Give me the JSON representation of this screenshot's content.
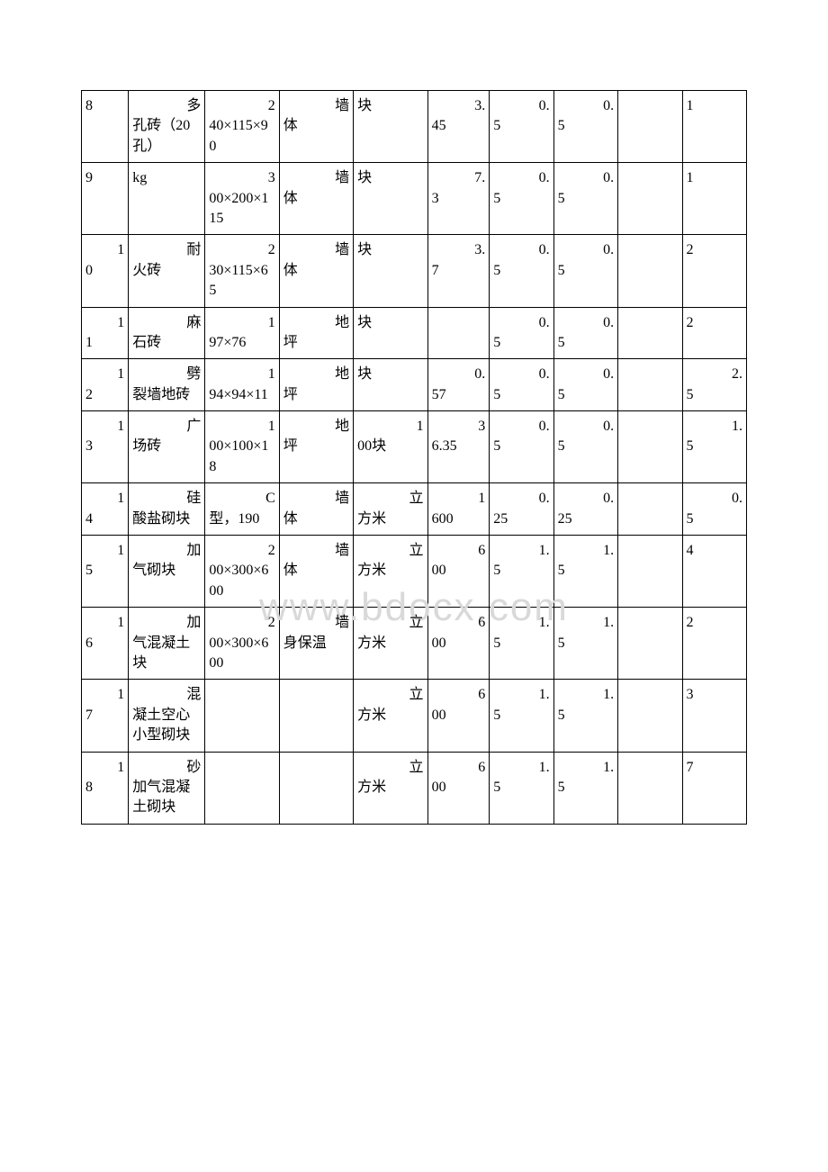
{
  "watermark_text": "www.bdocx.com",
  "rows": [
    {
      "c0": {
        "tr": "",
        "bl": "8"
      },
      "c1": {
        "tr": "多",
        "bl": "孔砖（20孔）"
      },
      "c2": {
        "tr": "2",
        "bl": "40×115×90"
      },
      "c3": {
        "tr": "墙",
        "bl": "体"
      },
      "c4": {
        "tr": "",
        "bl": "块"
      },
      "c5": {
        "tr": "3.",
        "bl": "45"
      },
      "c6": {
        "tr": "0.",
        "bl": "5"
      },
      "c7": {
        "tr": "0.",
        "bl": "5"
      },
      "c8": {
        "tr": "",
        "bl": ""
      },
      "c9": {
        "tr": "",
        "bl": "1"
      }
    },
    {
      "c0": {
        "tr": "",
        "bl": "9"
      },
      "c1": {
        "tr": "",
        "bl": "kg"
      },
      "c2": {
        "tr": "3",
        "bl": "00×200×115"
      },
      "c3": {
        "tr": "墙",
        "bl": "体"
      },
      "c4": {
        "tr": "",
        "bl": "块"
      },
      "c5": {
        "tr": "7.",
        "bl": "3"
      },
      "c6": {
        "tr": "0.",
        "bl": "5"
      },
      "c7": {
        "tr": "0.",
        "bl": "5"
      },
      "c8": {
        "tr": "",
        "bl": ""
      },
      "c9": {
        "tr": "",
        "bl": "1"
      }
    },
    {
      "c0": {
        "tr": "1",
        "bl": "0"
      },
      "c1": {
        "tr": "耐",
        "bl": "火砖"
      },
      "c2": {
        "tr": "2",
        "bl": "30×115×65"
      },
      "c3": {
        "tr": "墙",
        "bl": "体"
      },
      "c4": {
        "tr": "",
        "bl": "块"
      },
      "c5": {
        "tr": "3.",
        "bl": "7"
      },
      "c6": {
        "tr": "0.",
        "bl": "5"
      },
      "c7": {
        "tr": "0.",
        "bl": "5"
      },
      "c8": {
        "tr": "",
        "bl": ""
      },
      "c9": {
        "tr": "",
        "bl": "2"
      }
    },
    {
      "c0": {
        "tr": "1",
        "bl": "1"
      },
      "c1": {
        "tr": "麻",
        "bl": "石砖"
      },
      "c2": {
        "tr": "1",
        "bl": "97×76"
      },
      "c3": {
        "tr": "地",
        "bl": "坪"
      },
      "c4": {
        "tr": "",
        "bl": "块"
      },
      "c5": {
        "tr": "",
        "bl": ""
      },
      "c6": {
        "tr": "0.",
        "bl": "5"
      },
      "c7": {
        "tr": "0.",
        "bl": "5"
      },
      "c8": {
        "tr": "",
        "bl": ""
      },
      "c9": {
        "tr": "",
        "bl": "2"
      }
    },
    {
      "c0": {
        "tr": "1",
        "bl": "2"
      },
      "c1": {
        "tr": "劈",
        "bl": "裂墙地砖"
      },
      "c2": {
        "tr": "1",
        "bl": "94×94×11"
      },
      "c3": {
        "tr": "地",
        "bl": "坪"
      },
      "c4": {
        "tr": "",
        "bl": "块"
      },
      "c5": {
        "tr": "0.",
        "bl": "57"
      },
      "c6": {
        "tr": "0.",
        "bl": "5"
      },
      "c7": {
        "tr": "0.",
        "bl": "5"
      },
      "c8": {
        "tr": "",
        "bl": ""
      },
      "c9": {
        "tr": "2.",
        "bl": "5"
      }
    },
    {
      "c0": {
        "tr": "1",
        "bl": "3"
      },
      "c1": {
        "tr": "广",
        "bl": "场砖"
      },
      "c2": {
        "tr": "1",
        "bl": "00×100×18"
      },
      "c3": {
        "tr": "地",
        "bl": "坪"
      },
      "c4": {
        "tr": "1",
        "bl": "00块"
      },
      "c5": {
        "tr": "3",
        "bl": "6.35"
      },
      "c6": {
        "tr": "0.",
        "bl": "5"
      },
      "c7": {
        "tr": "0.",
        "bl": "5"
      },
      "c8": {
        "tr": "",
        "bl": ""
      },
      "c9": {
        "tr": "1.",
        "bl": "5"
      }
    },
    {
      "c0": {
        "tr": "1",
        "bl": "4"
      },
      "c1": {
        "tr": "硅",
        "bl": "酸盐砌块"
      },
      "c2": {
        "tr": "C",
        "bl": "型，190"
      },
      "c3": {
        "tr": "墙",
        "bl": "体"
      },
      "c4": {
        "tr": "立",
        "bl": "方米"
      },
      "c5": {
        "tr": "1",
        "bl": "600"
      },
      "c6": {
        "tr": "0.",
        "bl": "25"
      },
      "c7": {
        "tr": "0.",
        "bl": "25"
      },
      "c8": {
        "tr": "",
        "bl": ""
      },
      "c9": {
        "tr": "0.",
        "bl": "5"
      }
    },
    {
      "c0": {
        "tr": "1",
        "bl": "5"
      },
      "c1": {
        "tr": "加",
        "bl": "气砌块"
      },
      "c2": {
        "tr": "2",
        "bl": "00×300×600"
      },
      "c3": {
        "tr": "墙",
        "bl": "体"
      },
      "c4": {
        "tr": "立",
        "bl": "方米"
      },
      "c5": {
        "tr": "6",
        "bl": "00"
      },
      "c6": {
        "tr": "1.",
        "bl": "5"
      },
      "c7": {
        "tr": "1.",
        "bl": "5"
      },
      "c8": {
        "tr": "",
        "bl": ""
      },
      "c9": {
        "tr": "",
        "bl": "4"
      }
    },
    {
      "c0": {
        "tr": "1",
        "bl": "6"
      },
      "c1": {
        "tr": "加",
        "bl": "气混凝土块"
      },
      "c2": {
        "tr": "2",
        "bl": "00×300×600"
      },
      "c3": {
        "tr": "墙",
        "bl": "身保温"
      },
      "c4": {
        "tr": "立",
        "bl": "方米"
      },
      "c5": {
        "tr": "6",
        "bl": "00"
      },
      "c6": {
        "tr": "1.",
        "bl": "5"
      },
      "c7": {
        "tr": "1.",
        "bl": "5"
      },
      "c8": {
        "tr": "",
        "bl": ""
      },
      "c9": {
        "tr": "",
        "bl": "2"
      }
    },
    {
      "c0": {
        "tr": "1",
        "bl": "7"
      },
      "c1": {
        "tr": "混",
        "bl": "凝土空心小型砌块"
      },
      "c2": {
        "tr": "",
        "bl": ""
      },
      "c3": {
        "tr": "",
        "bl": ""
      },
      "c4": {
        "tr": "立",
        "bl": "方米"
      },
      "c5": {
        "tr": "6",
        "bl": "00"
      },
      "c6": {
        "tr": "1.",
        "bl": "5"
      },
      "c7": {
        "tr": "1.",
        "bl": "5"
      },
      "c8": {
        "tr": "",
        "bl": ""
      },
      "c9": {
        "tr": "",
        "bl": "3"
      }
    },
    {
      "c0": {
        "tr": "1",
        "bl": "8"
      },
      "c1": {
        "tr": "砂",
        "bl": "加气混凝土砌块"
      },
      "c2": {
        "tr": "",
        "bl": ""
      },
      "c3": {
        "tr": "",
        "bl": ""
      },
      "c4": {
        "tr": "立",
        "bl": "方米"
      },
      "c5": {
        "tr": "6",
        "bl": "00"
      },
      "c6": {
        "tr": "1.",
        "bl": "5"
      },
      "c7": {
        "tr": "1.",
        "bl": "5"
      },
      "c8": {
        "tr": "",
        "bl": ""
      },
      "c9": {
        "tr": "",
        "bl": "7"
      }
    }
  ]
}
